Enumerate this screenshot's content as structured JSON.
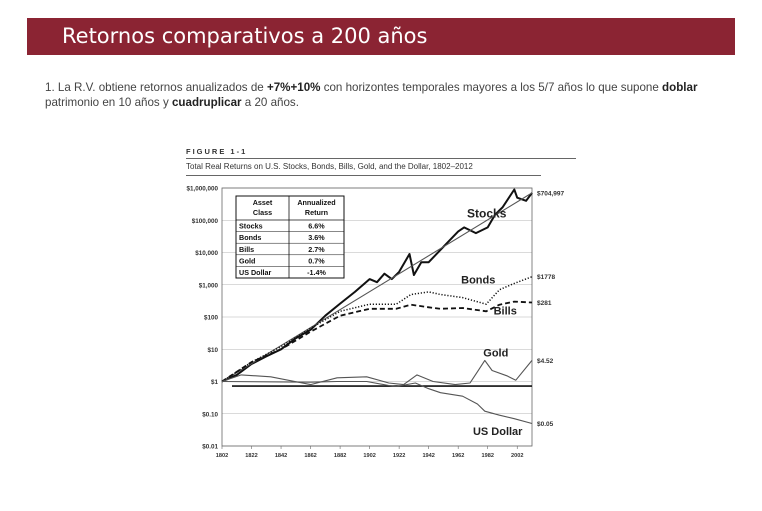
{
  "slide": {
    "title": "Retornos comparativos a 200 años",
    "intro": {
      "t1": "1. La R.V. obtiene retornos anualizados de ",
      "b1": "+7%+10%",
      "t2": " con horizontes temporales mayores a los 5/7 años lo que supone ",
      "b2": "doblar",
      "t3": " patrimonio en 10 años y ",
      "b3": "cuadruplicar",
      "t4": " a 20 años."
    }
  },
  "chart_data": {
    "type": "line",
    "figure_label": "FIGURE  1-1",
    "title": "Total Real Returns on U.S. Stocks, Bonds, Bills, Gold, and the Dollar, 1802–2012",
    "yscale": "log",
    "ylim": [
      0.01,
      1000000
    ],
    "xlim": [
      1802,
      2012
    ],
    "y_ticks": [
      {
        "value": 1000000,
        "label": "$1,000,000"
      },
      {
        "value": 100000,
        "label": "$100,000"
      },
      {
        "value": 10000,
        "label": "$10,000"
      },
      {
        "value": 1000,
        "label": "$1,000"
      },
      {
        "value": 100,
        "label": "$100"
      },
      {
        "value": 10,
        "label": "$10"
      },
      {
        "value": 1,
        "label": "$1"
      },
      {
        "value": 0.1,
        "label": "$0.10"
      },
      {
        "value": 0.01,
        "label": "$0.01"
      }
    ],
    "x_ticks": [
      1802,
      1822,
      1842,
      1862,
      1882,
      1902,
      1922,
      1942,
      1962,
      1982,
      2002
    ],
    "grid": true,
    "legend": "inline labels",
    "series": [
      {
        "name": "Stocks",
        "style": "thick-solid",
        "end_label": "$704,997",
        "x": [
          1802,
          1812,
          1822,
          1832,
          1842,
          1852,
          1862,
          1872,
          1882,
          1892,
          1902,
          1907,
          1912,
          1917,
          1922,
          1929,
          1932,
          1937,
          1942,
          1952,
          1962,
          1966,
          1974,
          1982,
          1987,
          1992,
          2000,
          2002,
          2008,
          2012
        ],
        "y": [
          1,
          1.6,
          3.5,
          6,
          10,
          22,
          40,
          110,
          260,
          600,
          1500,
          1200,
          2200,
          1500,
          2500,
          9000,
          2000,
          5000,
          5000,
          15000,
          45000,
          60000,
          40000,
          60000,
          150000,
          250000,
          900000,
          500000,
          400000,
          704997
        ]
      },
      {
        "name": "Stocks trend",
        "style": "thin-solid",
        "x": [
          1802,
          2012
        ],
        "y": [
          1,
          704997
        ]
      },
      {
        "name": "Bonds",
        "style": "dotted",
        "end_label": "$1778",
        "label_pos": "above",
        "x": [
          1802,
          1822,
          1842,
          1862,
          1882,
          1902,
          1920,
          1930,
          1942,
          1950,
          1965,
          1981,
          1990,
          2000,
          2012
        ],
        "y": [
          1,
          4,
          12,
          45,
          150,
          250,
          250,
          500,
          600,
          500,
          400,
          250,
          700,
          1100,
          1778
        ]
      },
      {
        "name": "Bills",
        "style": "dashed",
        "end_label": "$281",
        "label_pos": "below",
        "x": [
          1802,
          1822,
          1842,
          1862,
          1882,
          1902,
          1920,
          1930,
          1942,
          1950,
          1965,
          1981,
          1990,
          2000,
          2012
        ],
        "y": [
          1,
          4,
          10,
          35,
          110,
          180,
          180,
          240,
          200,
          180,
          190,
          150,
          240,
          300,
          281
        ]
      },
      {
        "name": "Gold",
        "style": "thin-solid",
        "end_label": "$4.52",
        "x": [
          1802,
          1815,
          1835,
          1862,
          1880,
          1900,
          1915,
          1925,
          1934,
          1945,
          1960,
          1970,
          1975,
          1980,
          1985,
          1995,
          2001,
          2012
        ],
        "y": [
          1,
          1.6,
          1.4,
          0.8,
          1.3,
          1.4,
          0.9,
          0.8,
          1.6,
          1.0,
          0.8,
          0.9,
          2.0,
          4.5,
          2.2,
          1.5,
          1.1,
          4.52
        ]
      },
      {
        "name": "US Dollar",
        "style": "thin-solid",
        "end_label": "$0.05",
        "x": [
          1802,
          1862,
          1880,
          1900,
          1915,
          1920,
          1933,
          1942,
          1950,
          1965,
          1975,
          1980,
          1990,
          2000,
          2012
        ],
        "y": [
          1,
          0.95,
          1.0,
          1.0,
          0.75,
          0.7,
          0.9,
          0.6,
          0.45,
          0.35,
          0.2,
          0.12,
          0.09,
          0.07,
          0.05
        ]
      }
    ],
    "table": {
      "headers": [
        "Asset\nClass",
        "Annualized\nReturn"
      ],
      "rows": [
        [
          "Stocks",
          "6.6%"
        ],
        [
          "Bonds",
          "3.6%"
        ],
        [
          "Bills",
          "2.7%"
        ],
        [
          "Gold",
          "0.7%"
        ],
        [
          "US Dollar",
          "-1.4%"
        ]
      ]
    }
  }
}
